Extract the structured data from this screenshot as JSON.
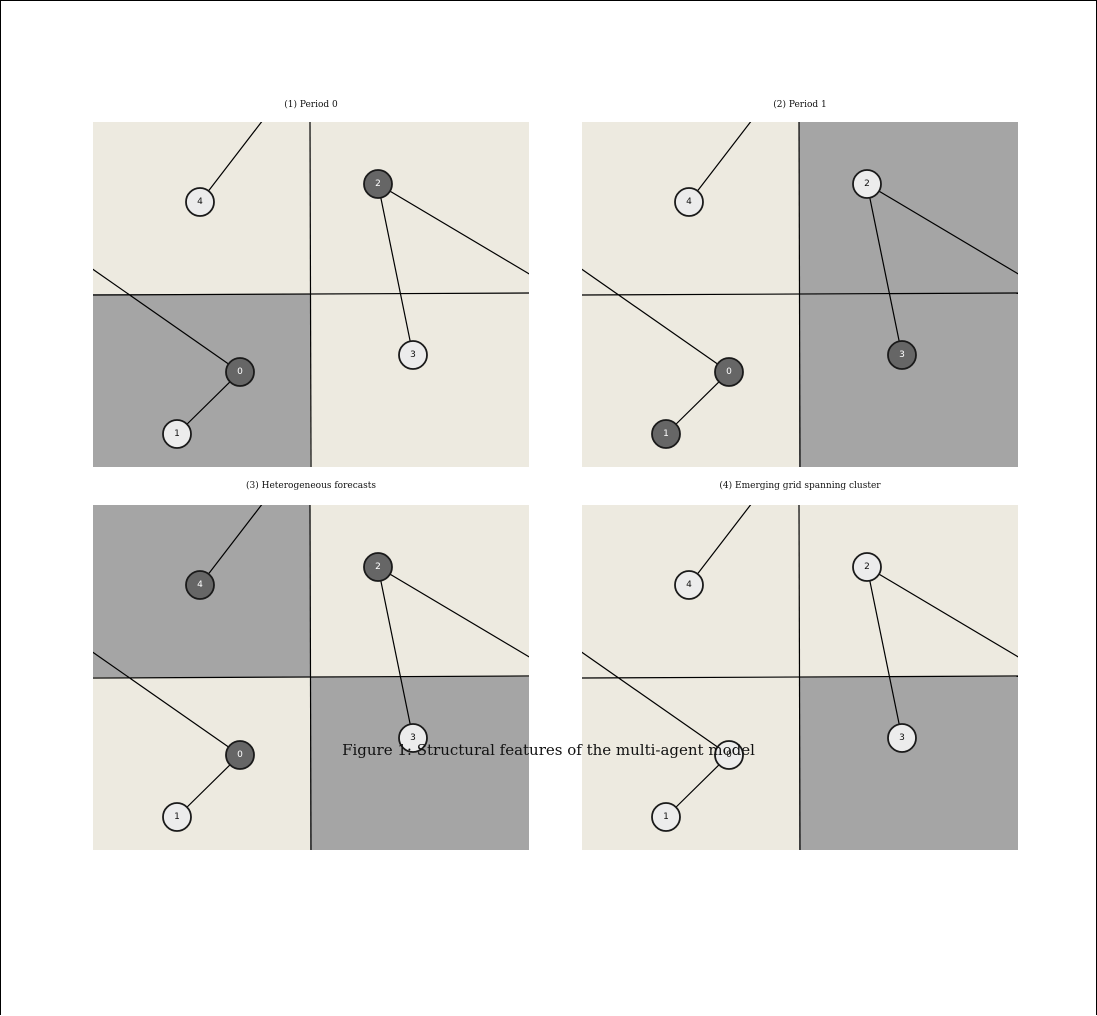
{
  "figure": {
    "caption": "Figure 1: Structural features of the multi-agent model"
  },
  "colors": {
    "light_region": "#edeae0",
    "dark_region": "#a5a5a5",
    "light_node": "#ececec",
    "dark_node": "#666666",
    "line": "#000000"
  },
  "panels": [
    {
      "title": "(1)  Period 0",
      "quadrants": {
        "top_left": "light",
        "top_right": "light",
        "bottom_left": "dark",
        "bottom_right": "light"
      },
      "nodes": [
        {
          "id": "0",
          "state": "dark"
        },
        {
          "id": "1",
          "state": "light"
        },
        {
          "id": "2",
          "state": "dark"
        },
        {
          "id": "3",
          "state": "light"
        },
        {
          "id": "4",
          "state": "light"
        }
      ]
    },
    {
      "title": "(2)  Period 1",
      "quadrants": {
        "top_left": "light",
        "top_right": "dark",
        "bottom_left": "light",
        "bottom_right": "dark"
      },
      "nodes": [
        {
          "id": "0",
          "state": "dark"
        },
        {
          "id": "1",
          "state": "dark"
        },
        {
          "id": "2",
          "state": "light"
        },
        {
          "id": "3",
          "state": "dark"
        },
        {
          "id": "4",
          "state": "light"
        }
      ]
    },
    {
      "title": "(3)  Heterogeneous forecasts",
      "quadrants": {
        "top_left": "dark",
        "top_right": "light",
        "bottom_left": "light",
        "bottom_right": "dark"
      },
      "nodes": [
        {
          "id": "0",
          "state": "dark"
        },
        {
          "id": "1",
          "state": "light"
        },
        {
          "id": "2",
          "state": "dark"
        },
        {
          "id": "3",
          "state": "light"
        },
        {
          "id": "4",
          "state": "dark"
        }
      ]
    },
    {
      "title": "(4)  Emerging grid spanning cluster",
      "quadrants": {
        "top_left": "light",
        "top_right": "light",
        "bottom_left": "light",
        "bottom_right": "dark"
      },
      "nodes": [
        {
          "id": "0",
          "state": "light"
        },
        {
          "id": "1",
          "state": "light"
        },
        {
          "id": "2",
          "state": "light"
        },
        {
          "id": "3",
          "state": "light"
        },
        {
          "id": "4",
          "state": "light"
        }
      ]
    }
  ]
}
